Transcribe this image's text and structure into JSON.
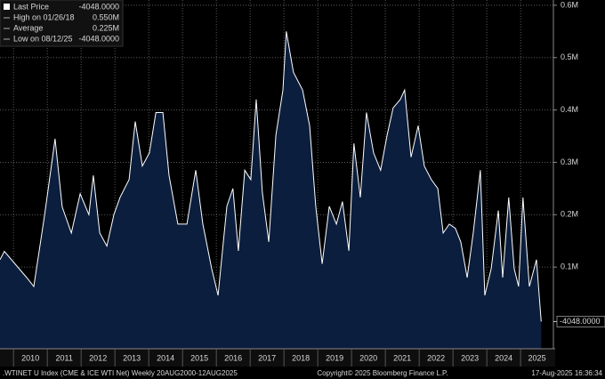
{
  "chart_data": {
    "type": "area",
    "x": [
      2009.6,
      2009.73,
      2010.39,
      2010.6,
      2010.92,
      2011.23,
      2011.44,
      2011.71,
      2011.97,
      2012.23,
      2012.36,
      2012.55,
      2012.76,
      2012.97,
      2013.15,
      2013.42,
      2013.6,
      2013.81,
      2014.02,
      2014.21,
      2014.42,
      2014.6,
      2014.86,
      2015.13,
      2015.39,
      2015.6,
      2015.86,
      2016.05,
      2016.31,
      2016.49,
      2016.65,
      2016.84,
      2017.02,
      2017.18,
      2017.36,
      2017.55,
      2017.76,
      2017.97,
      2018.07,
      2018.28,
      2018.55,
      2018.76,
      2018.94,
      2019.13,
      2019.34,
      2019.55,
      2019.73,
      2019.92,
      2020.07,
      2020.26,
      2020.44,
      2020.65,
      2020.86,
      2021.05,
      2021.23,
      2021.44,
      2021.57,
      2021.76,
      2021.97,
      2022.15,
      2022.36,
      2022.55,
      2022.71,
      2022.89,
      2023.07,
      2023.23,
      2023.42,
      2023.6,
      2023.81,
      2023.94,
      2024.13,
      2024.34,
      2024.47,
      2024.65,
      2024.81,
      2024.94,
      2025.07,
      2025.26,
      2025.47,
      2025.55,
      2025.61
    ],
    "series": [
      {
        "name": "Last Price",
        "color": "#ffffff",
        "fill": "#0b1e3d",
        "values": [
          114000,
          130000,
          80000,
          63000,
          200000,
          345000,
          215000,
          165000,
          240000,
          200000,
          275000,
          165000,
          140000,
          200000,
          233000,
          267000,
          378000,
          293000,
          318000,
          395000,
          395000,
          275000,
          182000,
          182000,
          285000,
          182000,
          97000,
          46000,
          216000,
          250000,
          131000,
          285000,
          267000,
          420000,
          242000,
          148000,
          352000,
          438000,
          550000,
          472000,
          438000,
          370000,
          216000,
          106000,
          216000,
          182000,
          225000,
          131000,
          336000,
          233000,
          395000,
          318000,
          285000,
          352000,
          404000,
          420000,
          438000,
          310000,
          370000,
          293000,
          267000,
          250000,
          165000,
          182000,
          174000,
          148000,
          80000,
          165000,
          285000,
          46000,
          97000,
          208000,
          80000,
          233000,
          97000,
          63000,
          233000,
          63000,
          114000,
          46000,
          -4048
        ]
      }
    ],
    "xlim": [
      2009.6,
      2025.97
    ],
    "xticks": [
      2010,
      2011,
      2012,
      2013,
      2014,
      2015,
      2016,
      2017,
      2018,
      2019,
      2020,
      2021,
      2022,
      2023,
      2024,
      2025
    ],
    "ylim": [
      -56000,
      610000
    ],
    "yticks": [
      {
        "value": 100000,
        "label": "0.1M"
      },
      {
        "value": 200000,
        "label": "0.2M"
      },
      {
        "value": 300000,
        "label": "0.3M"
      },
      {
        "value": 400000,
        "label": "0.4M"
      },
      {
        "value": 500000,
        "label": "0.5M"
      },
      {
        "value": 600000,
        "label": "0.6M"
      }
    ],
    "grid": true,
    "legend": [
      {
        "label": "Last Price",
        "value": "-4048.0000"
      },
      {
        "label": "High on 01/26/18",
        "value": "0.550M"
      },
      {
        "label": "Average",
        "value": "0.225M"
      },
      {
        "label": "Low on 08/12/25",
        "value": "-4048.0000"
      }
    ],
    "footer": {
      "left": ".WTINET U Index (CME & ICE WTI Net)  Weekly 20AUG2000-12AUG2025",
      "center": "Copyright© 2025 Bloomberg Finance L.P.",
      "right": "17-Aug-2025 16:36:34"
    }
  }
}
